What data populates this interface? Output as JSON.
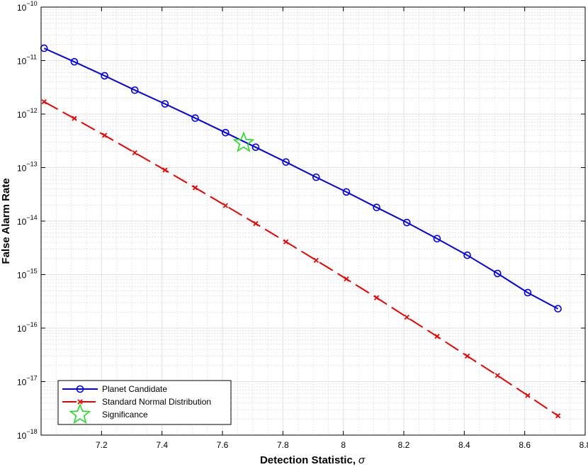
{
  "chart_data": {
    "type": "line",
    "title": "",
    "xlabel": "Detection Statistic,",
    "xlabel_symbol": "σ",
    "ylabel": "False Alarm Rate",
    "xlim": [
      7.0,
      8.8
    ],
    "ylim_exp": [
      -18,
      -10
    ],
    "y_scale": "log",
    "grid": true,
    "minor_grid": true,
    "legend_location": "bottom-left",
    "x_ticks": [
      7.2,
      7.4,
      7.6,
      7.8,
      8,
      8.2,
      8.4,
      8.6,
      8.8
    ],
    "x_tick_labels": [
      "7.2",
      "7.4",
      "7.6",
      "7.8",
      "8",
      "8.2",
      "8.4",
      "8.6",
      "8.8"
    ],
    "y_tick_exps": [
      -10,
      -11,
      -12,
      -13,
      -14,
      -15,
      -16,
      -17,
      -18
    ],
    "y_tick_base": "10",
    "y_tick_exp_labels": [
      "−10",
      "−11",
      "−12",
      "−13",
      "−14",
      "−15",
      "−16",
      "−17",
      "−18"
    ],
    "x": [
      7.01,
      7.11,
      7.21,
      7.31,
      7.41,
      7.51,
      7.61,
      7.71,
      7.81,
      7.91,
      8.01,
      8.11,
      8.21,
      8.31,
      8.41,
      8.51,
      8.61,
      8.71
    ],
    "series": [
      {
        "name": "Planet Candidate",
        "color": "#0000ee",
        "marker": "circle",
        "line_style": "solid",
        "values": [
          1.7e-11,
          9.5e-12,
          5.2e-12,
          2.8e-12,
          1.55e-12,
          8.4e-13,
          4.5e-13,
          2.4e-13,
          1.27e-13,
          6.6e-14,
          3.5e-14,
          1.8e-14,
          9.4e-15,
          4.7e-15,
          2.3e-15,
          1.05e-15,
          4.6e-16,
          2.3e-16
        ]
      },
      {
        "name": "Standard Normal Distribution",
        "color": "#ee0000",
        "marker": "x",
        "line_style": "dashed",
        "values": [
          1.7e-12,
          8.3e-13,
          4e-13,
          1.9e-13,
          9e-14,
          4.2e-14,
          1.95e-14,
          9e-15,
          4.1e-15,
          1.85e-15,
          8.3e-16,
          3.7e-16,
          1.6e-16,
          7e-17,
          3e-17,
          1.3e-17,
          5.5e-18,
          2.3e-18
        ]
      }
    ],
    "significance_point": {
      "name": "Significance",
      "x": 7.67,
      "y": 2.9e-13,
      "color": "#22dd22",
      "marker": "star"
    }
  }
}
